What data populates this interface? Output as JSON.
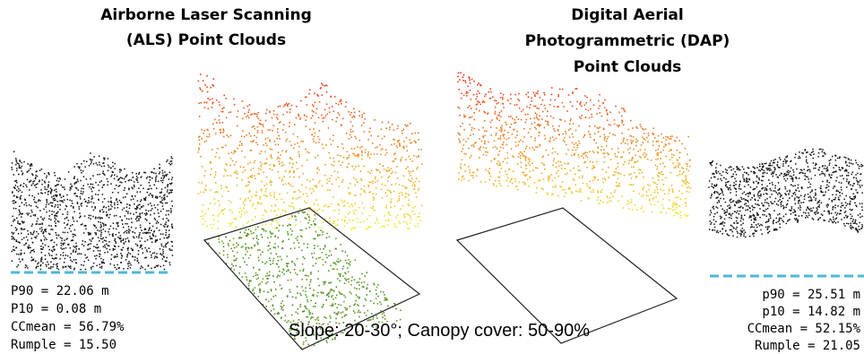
{
  "als": {
    "title": [
      "Airborne Laser Scanning",
      "(ALS) Point Clouds"
    ],
    "stats": [
      "P90 = 22.06 m",
      "P10 = 0.08 m",
      "CCmean = 56.79%",
      "Rumple = 15.50"
    ]
  },
  "dap": {
    "title": [
      "Digital Aerial",
      "Photogrammetric (DAP)",
      "Point Clouds"
    ],
    "stats": [
      "p90 = 25.51 m",
      "p10 = 14.82 m",
      "CCmean = 52.15%",
      "Rumple = 21.05"
    ]
  },
  "caption": "Slope: 20-30°; Canopy cover: 50-90%"
}
